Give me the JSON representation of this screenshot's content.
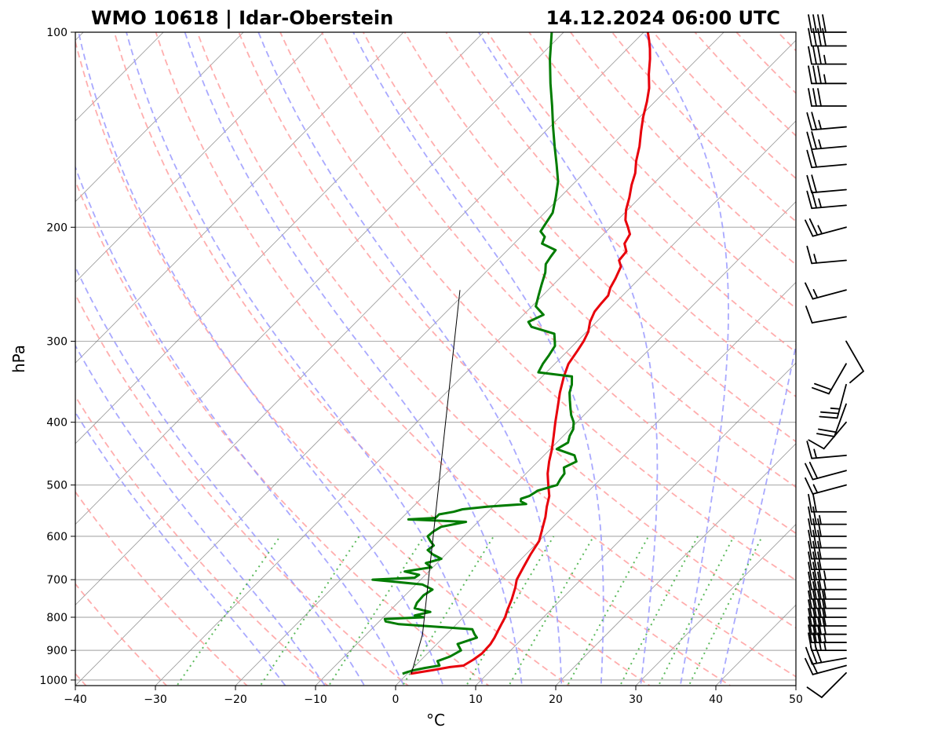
{
  "header": {
    "station_title": "WMO 10618 | Idar-Oberstein",
    "datetime_title": "14.12.2024 06:00 UTC"
  },
  "chart_data": {
    "type": "skew-t",
    "xlabel": "°C",
    "ylabel": "hPa",
    "xlim": [
      -40,
      50
    ],
    "ylim": [
      1020,
      100
    ],
    "x_ticks": [
      -40,
      -30,
      -20,
      -10,
      0,
      10,
      20,
      30,
      40,
      50
    ],
    "x_tick_labels": [
      "−40",
      "−30",
      "−20",
      "−10",
      "0",
      "10",
      "20",
      "30",
      "40",
      "50"
    ],
    "y_ticks": [
      1000,
      900,
      800,
      700,
      600,
      500,
      400,
      300,
      200,
      100
    ],
    "y_tick_labels": [
      "1000",
      "900",
      "800",
      "700",
      "600",
      "500",
      "400",
      "300",
      "200",
      "100"
    ],
    "grid": true,
    "colors": {
      "temperature": "#e8000b",
      "dewpoint": "#007c00",
      "dry_adiabat": "#ff9a9a",
      "moist_adiabat": "#9a9aff",
      "mixing_ratio": "#3fae3f",
      "isotherm": "#7a7a7a",
      "grid": "#b0b0b0"
    },
    "series": [
      {
        "key": "temperature",
        "points": [
          [
            978,
            0.4
          ],
          [
            965,
            2.8
          ],
          [
            955,
            4.5
          ],
          [
            950,
            6.0
          ],
          [
            930,
            6.5
          ],
          [
            910,
            6.8
          ],
          [
            880,
            6.7
          ],
          [
            860,
            6.4
          ],
          [
            840,
            6.0
          ],
          [
            820,
            5.6
          ],
          [
            800,
            5.2
          ],
          [
            780,
            4.6
          ],
          [
            750,
            3.8
          ],
          [
            720,
            2.8
          ],
          [
            700,
            2.0
          ],
          [
            670,
            1.3
          ],
          [
            640,
            0.6
          ],
          [
            610,
            0.0
          ],
          [
            580,
            -1.3
          ],
          [
            560,
            -2.2
          ],
          [
            540,
            -3.3
          ],
          [
            520,
            -4.3
          ],
          [
            500,
            -5.8
          ],
          [
            480,
            -7.3
          ],
          [
            460,
            -8.6
          ],
          [
            440,
            -9.8
          ],
          [
            420,
            -11.2
          ],
          [
            400,
            -12.7
          ],
          [
            380,
            -14.2
          ],
          [
            360,
            -15.8
          ],
          [
            340,
            -17.3
          ],
          [
            325,
            -18.3
          ],
          [
            310,
            -18.8
          ],
          [
            300,
            -19.2
          ],
          [
            290,
            -19.8
          ],
          [
            280,
            -20.8
          ],
          [
            270,
            -21.5
          ],
          [
            262,
            -21.7
          ],
          [
            255,
            -21.8
          ],
          [
            248,
            -22.5
          ],
          [
            240,
            -23.0
          ],
          [
            230,
            -23.8
          ],
          [
            225,
            -24.8
          ],
          [
            218,
            -25.0
          ],
          [
            212,
            -26.2
          ],
          [
            205,
            -26.7
          ],
          [
            200,
            -27.8
          ],
          [
            195,
            -29.0
          ],
          [
            188,
            -30.2
          ],
          [
            180,
            -31.3
          ],
          [
            172,
            -32.6
          ],
          [
            165,
            -33.6
          ],
          [
            158,
            -35.0
          ],
          [
            150,
            -36.4
          ],
          [
            142,
            -38.1
          ],
          [
            135,
            -39.6
          ],
          [
            128,
            -41.0
          ],
          [
            122,
            -42.4
          ],
          [
            116,
            -44.2
          ],
          [
            110,
            -45.9
          ],
          [
            106,
            -47.2
          ],
          [
            103,
            -48.3
          ],
          [
            100,
            -49.5
          ]
        ]
      },
      {
        "key": "dewpoint",
        "points": [
          [
            978,
            -0.6
          ],
          [
            972,
            -0.2
          ],
          [
            965,
            0.5
          ],
          [
            958,
            1.5
          ],
          [
            950,
            3.0
          ],
          [
            935,
            2.2
          ],
          [
            920,
            3.2
          ],
          [
            900,
            3.8
          ],
          [
            880,
            2.6
          ],
          [
            860,
            4.2
          ],
          [
            850,
            3.5
          ],
          [
            835,
            2.6
          ],
          [
            820,
            -7.2
          ],
          [
            812,
            -9.2
          ],
          [
            805,
            -9.6
          ],
          [
            800,
            -5.0
          ],
          [
            795,
            -6.3
          ],
          [
            785,
            -4.8
          ],
          [
            775,
            -7.2
          ],
          [
            760,
            -7.6
          ],
          [
            740,
            -7.7
          ],
          [
            725,
            -7.3
          ],
          [
            712,
            -9.2
          ],
          [
            700,
            -16.0
          ],
          [
            695,
            -11.0
          ],
          [
            688,
            -10.8
          ],
          [
            680,
            -13.0
          ],
          [
            670,
            -10.2
          ],
          [
            660,
            -11.4
          ],
          [
            650,
            -10.0
          ],
          [
            640,
            -11.6
          ],
          [
            630,
            -12.8
          ],
          [
            620,
            -12.6
          ],
          [
            610,
            -13.6
          ],
          [
            600,
            -14.5
          ],
          [
            590,
            -14.4
          ],
          [
            580,
            -14.0
          ],
          [
            570,
            -11.5
          ],
          [
            565,
            -19.0
          ],
          [
            562,
            -15.8
          ],
          [
            555,
            -15.8
          ],
          [
            550,
            -14.3
          ],
          [
            545,
            -13.5
          ],
          [
            540,
            -10.8
          ],
          [
            535,
            -6.2
          ],
          [
            530,
            -7.2
          ],
          [
            525,
            -7.5
          ],
          [
            520,
            -6.8
          ],
          [
            510,
            -6.4
          ],
          [
            500,
            -4.7
          ],
          [
            490,
            -5.0
          ],
          [
            480,
            -5.2
          ],
          [
            470,
            -6.0
          ],
          [
            460,
            -5.2
          ],
          [
            450,
            -6.2
          ],
          [
            440,
            -9.2
          ],
          [
            430,
            -8.6
          ],
          [
            420,
            -9.2
          ],
          [
            410,
            -9.6
          ],
          [
            400,
            -10.4
          ],
          [
            390,
            -11.6
          ],
          [
            380,
            -12.6
          ],
          [
            370,
            -13.6
          ],
          [
            360,
            -14.6
          ],
          [
            350,
            -15.3
          ],
          [
            340,
            -16.3
          ],
          [
            335,
            -21.0
          ],
          [
            325,
            -21.5
          ],
          [
            315,
            -21.8
          ],
          [
            305,
            -22.2
          ],
          [
            300,
            -22.8
          ],
          [
            292,
            -23.8
          ],
          [
            285,
            -27.5
          ],
          [
            280,
            -28.5
          ],
          [
            273,
            -27.5
          ],
          [
            265,
            -29.5
          ],
          [
            255,
            -30.5
          ],
          [
            245,
            -31.5
          ],
          [
            235,
            -32.5
          ],
          [
            228,
            -33.5
          ],
          [
            222,
            -33.8
          ],
          [
            217,
            -34.0
          ],
          [
            212,
            -36.5
          ],
          [
            207,
            -37.0
          ],
          [
            203,
            -38.2
          ],
          [
            198,
            -38.5
          ],
          [
            190,
            -39.0
          ],
          [
            180,
            -40.5
          ],
          [
            170,
            -42.2
          ],
          [
            160,
            -44.5
          ],
          [
            150,
            -47.0
          ],
          [
            140,
            -49.6
          ],
          [
            130,
            -52.3
          ],
          [
            120,
            -55.3
          ],
          [
            110,
            -58.4
          ],
          [
            100,
            -61.5
          ]
        ]
      },
      {
        "key": "parcel",
        "points": [
          [
            978,
            0.5
          ],
          [
            850,
            -3.0
          ],
          [
            250,
            -41.0
          ]
        ]
      }
    ],
    "wind_barbs": [
      {
        "p": 975,
        "dir": 225,
        "speed": 10
      },
      {
        "p": 950,
        "dir": 255,
        "speed": 20
      },
      {
        "p": 925,
        "dir": 260,
        "speed": 30
      },
      {
        "p": 900,
        "dir": 270,
        "speed": 35
      },
      {
        "p": 875,
        "dir": 270,
        "speed": 35
      },
      {
        "p": 850,
        "dir": 270,
        "speed": 40
      },
      {
        "p": 825,
        "dir": 270,
        "speed": 40
      },
      {
        "p": 800,
        "dir": 270,
        "speed": 40
      },
      {
        "p": 775,
        "dir": 270,
        "speed": 40
      },
      {
        "p": 750,
        "dir": 270,
        "speed": 35
      },
      {
        "p": 725,
        "dir": 270,
        "speed": 35
      },
      {
        "p": 700,
        "dir": 270,
        "speed": 35
      },
      {
        "p": 675,
        "dir": 270,
        "speed": 30
      },
      {
        "p": 650,
        "dir": 270,
        "speed": 30
      },
      {
        "p": 625,
        "dir": 270,
        "speed": 30
      },
      {
        "p": 600,
        "dir": 270,
        "speed": 30
      },
      {
        "p": 575,
        "dir": 270,
        "speed": 25
      },
      {
        "p": 550,
        "dir": 270,
        "speed": 20
      },
      {
        "p": 500,
        "dir": 255,
        "speed": 15
      },
      {
        "p": 475,
        "dir": 255,
        "speed": 20
      },
      {
        "p": 450,
        "dir": 265,
        "speed": 15
      },
      {
        "p": 400,
        "dir": 220,
        "speed": 10
      },
      {
        "p": 375,
        "dir": 200,
        "speed": 20
      },
      {
        "p": 350,
        "dir": 195,
        "speed": 25
      },
      {
        "p": 325,
        "dir": 210,
        "speed": 20
      },
      {
        "p": 300,
        "dir": 150,
        "speed": 10
      },
      {
        "p": 275,
        "dir": 260,
        "speed": 10
      },
      {
        "p": 250,
        "dir": 255,
        "speed": 15
      },
      {
        "p": 225,
        "dir": 265,
        "speed": 15
      },
      {
        "p": 200,
        "dir": 255,
        "speed": 25
      },
      {
        "p": 185,
        "dir": 265,
        "speed": 25
      },
      {
        "p": 175,
        "dir": 265,
        "speed": 20
      },
      {
        "p": 160,
        "dir": 265,
        "speed": 20
      },
      {
        "p": 150,
        "dir": 265,
        "speed": 25
      },
      {
        "p": 140,
        "dir": 265,
        "speed": 25
      },
      {
        "p": 130,
        "dir": 270,
        "speed": 30
      },
      {
        "p": 120,
        "dir": 270,
        "speed": 35
      },
      {
        "p": 112,
        "dir": 270,
        "speed": 35
      },
      {
        "p": 105,
        "dir": 270,
        "speed": 40
      },
      {
        "p": 100,
        "dir": 270,
        "speed": 40
      }
    ]
  }
}
